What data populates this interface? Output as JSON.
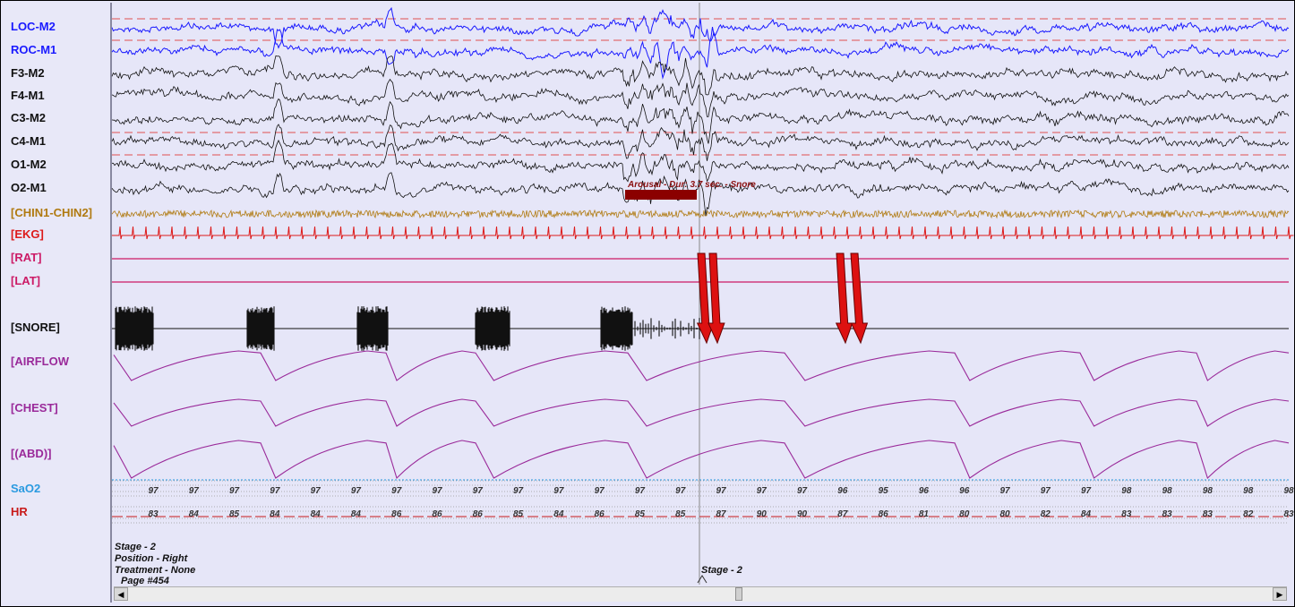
{
  "channels": [
    {
      "label": "LOC-M2",
      "color": "#1a1aff"
    },
    {
      "label": "ROC-M1",
      "color": "#1a1aff"
    },
    {
      "label": "F3-M2",
      "color": "#111111"
    },
    {
      "label": "F4-M1",
      "color": "#111111"
    },
    {
      "label": "C3-M2",
      "color": "#111111"
    },
    {
      "label": "C4-M1",
      "color": "#111111"
    },
    {
      "label": "O1-M2",
      "color": "#111111"
    },
    {
      "label": "O2-M1",
      "color": "#111111"
    },
    {
      "label": "[CHIN1-CHIN2]",
      "color": "#b07a10"
    },
    {
      "label": "[EKG]",
      "color": "#dd1a1a"
    },
    {
      "label": "[RAT]",
      "color": "#cc1a66"
    },
    {
      "label": "[LAT]",
      "color": "#cc1a66"
    },
    {
      "label": "[SNORE]",
      "color": "#111111"
    },
    {
      "label": "[AIRFLOW",
      "color": "#9a2a9a"
    },
    {
      "label": "[CHEST]",
      "color": "#9a2a9a"
    },
    {
      "label": "[(ABD)]",
      "color": "#9a2a9a"
    },
    {
      "label": "SaO2",
      "color": "#2a9ae0"
    },
    {
      "label": "HR",
      "color": "#c81a1a"
    }
  ],
  "chart_data": {
    "type": "line",
    "title": "",
    "sao2": [
      97,
      97,
      97,
      97,
      97,
      97,
      97,
      97,
      97,
      97,
      97,
      97,
      97,
      97,
      97,
      97,
      97,
      96,
      95,
      96,
      96,
      97,
      97,
      97,
      98,
      98,
      98,
      98,
      98
    ],
    "hr": [
      83,
      84,
      85,
      84,
      84,
      84,
      86,
      86,
      86,
      85,
      84,
      86,
      85,
      85,
      87,
      90,
      90,
      87,
      86,
      81,
      80,
      80,
      82,
      84,
      83,
      83,
      83,
      82,
      83
    ],
    "annotation": "Arousal - Dur: 3.7 sec. - Snore",
    "arrow_color": "#dd1111"
  },
  "footer": {
    "stage": "Stage - 2",
    "position": "Position - Right",
    "treatment": "Treatment - None",
    "page": "Page #454",
    "stage_marker": "Stage - 2"
  }
}
